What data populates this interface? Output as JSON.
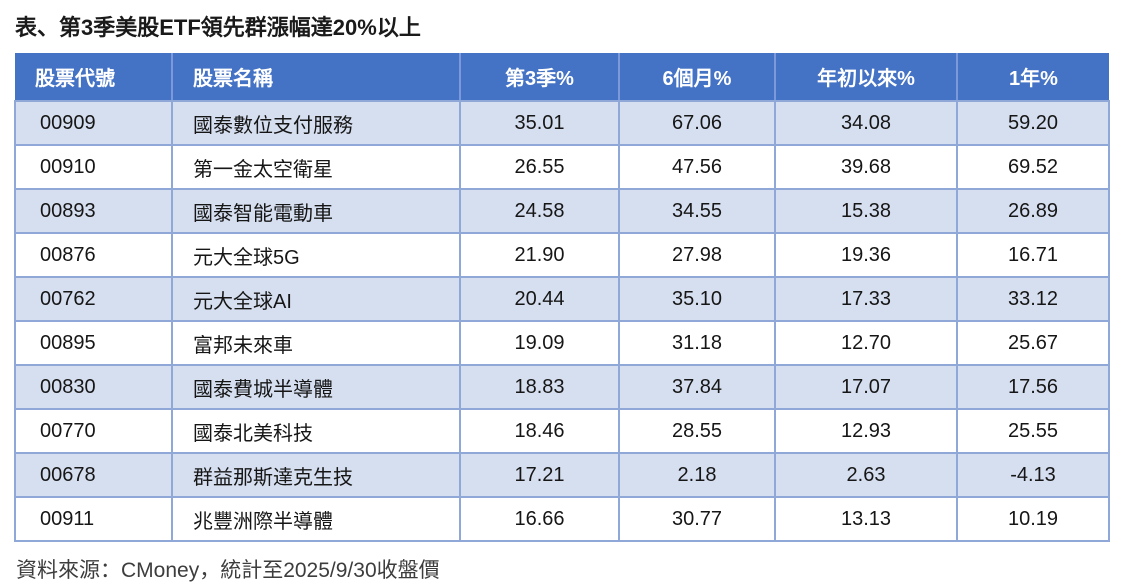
{
  "title": "表、第3季美股ETF領先群漲幅達20%以上",
  "source_note": "資料來源：CMoney，統計至2025/9/30收盤價",
  "colors": {
    "header_bg": "#4472C4",
    "header_text": "#FFFFFF",
    "band_row_bg": "#D6DFF0",
    "plain_row_bg": "#FFFFFF",
    "cell_border": "#8FA8D8",
    "header_divider": "#7C99D9",
    "title_text": "#1A1A1A",
    "source_text": "#3D3D3D"
  },
  "chart_data": {
    "type": "table",
    "title": "表、第3季美股ETF領先群漲幅達20%以上",
    "columns": [
      "股票代號",
      "股票名稱",
      "第3季%",
      "6個月%",
      "年初以來%",
      "1年%"
    ],
    "rows": [
      [
        "00909",
        "國泰數位支付服務",
        "35.01",
        "67.06",
        "34.08",
        "59.20"
      ],
      [
        "00910",
        "第一金太空衛星",
        "26.55",
        "47.56",
        "39.68",
        "69.52"
      ],
      [
        "00893",
        "國泰智能電動車",
        "24.58",
        "34.55",
        "15.38",
        "26.89"
      ],
      [
        "00876",
        "元大全球5G",
        "21.90",
        "27.98",
        "19.36",
        "16.71"
      ],
      [
        "00762",
        "元大全球AI",
        "20.44",
        "35.10",
        "17.33",
        "33.12"
      ],
      [
        "00895",
        "富邦未來車",
        "19.09",
        "31.18",
        "12.70",
        "25.67"
      ],
      [
        "00830",
        "國泰費城半導體",
        "18.83",
        "37.84",
        "17.07",
        "17.56"
      ],
      [
        "00770",
        "國泰北美科技",
        "18.46",
        "28.55",
        "12.93",
        "25.55"
      ],
      [
        "00678",
        "群益那斯達克生技",
        "17.21",
        "2.18",
        "2.63",
        "-4.13"
      ],
      [
        "00911",
        "兆豐洲際半導體",
        "16.66",
        "30.77",
        "13.13",
        "10.19"
      ]
    ],
    "layout_hints": {
      "banded_rows": true,
      "first_band_color_row_index": 0,
      "numeric_columns_alignment": "center",
      "text_columns_alignment": "left"
    }
  }
}
